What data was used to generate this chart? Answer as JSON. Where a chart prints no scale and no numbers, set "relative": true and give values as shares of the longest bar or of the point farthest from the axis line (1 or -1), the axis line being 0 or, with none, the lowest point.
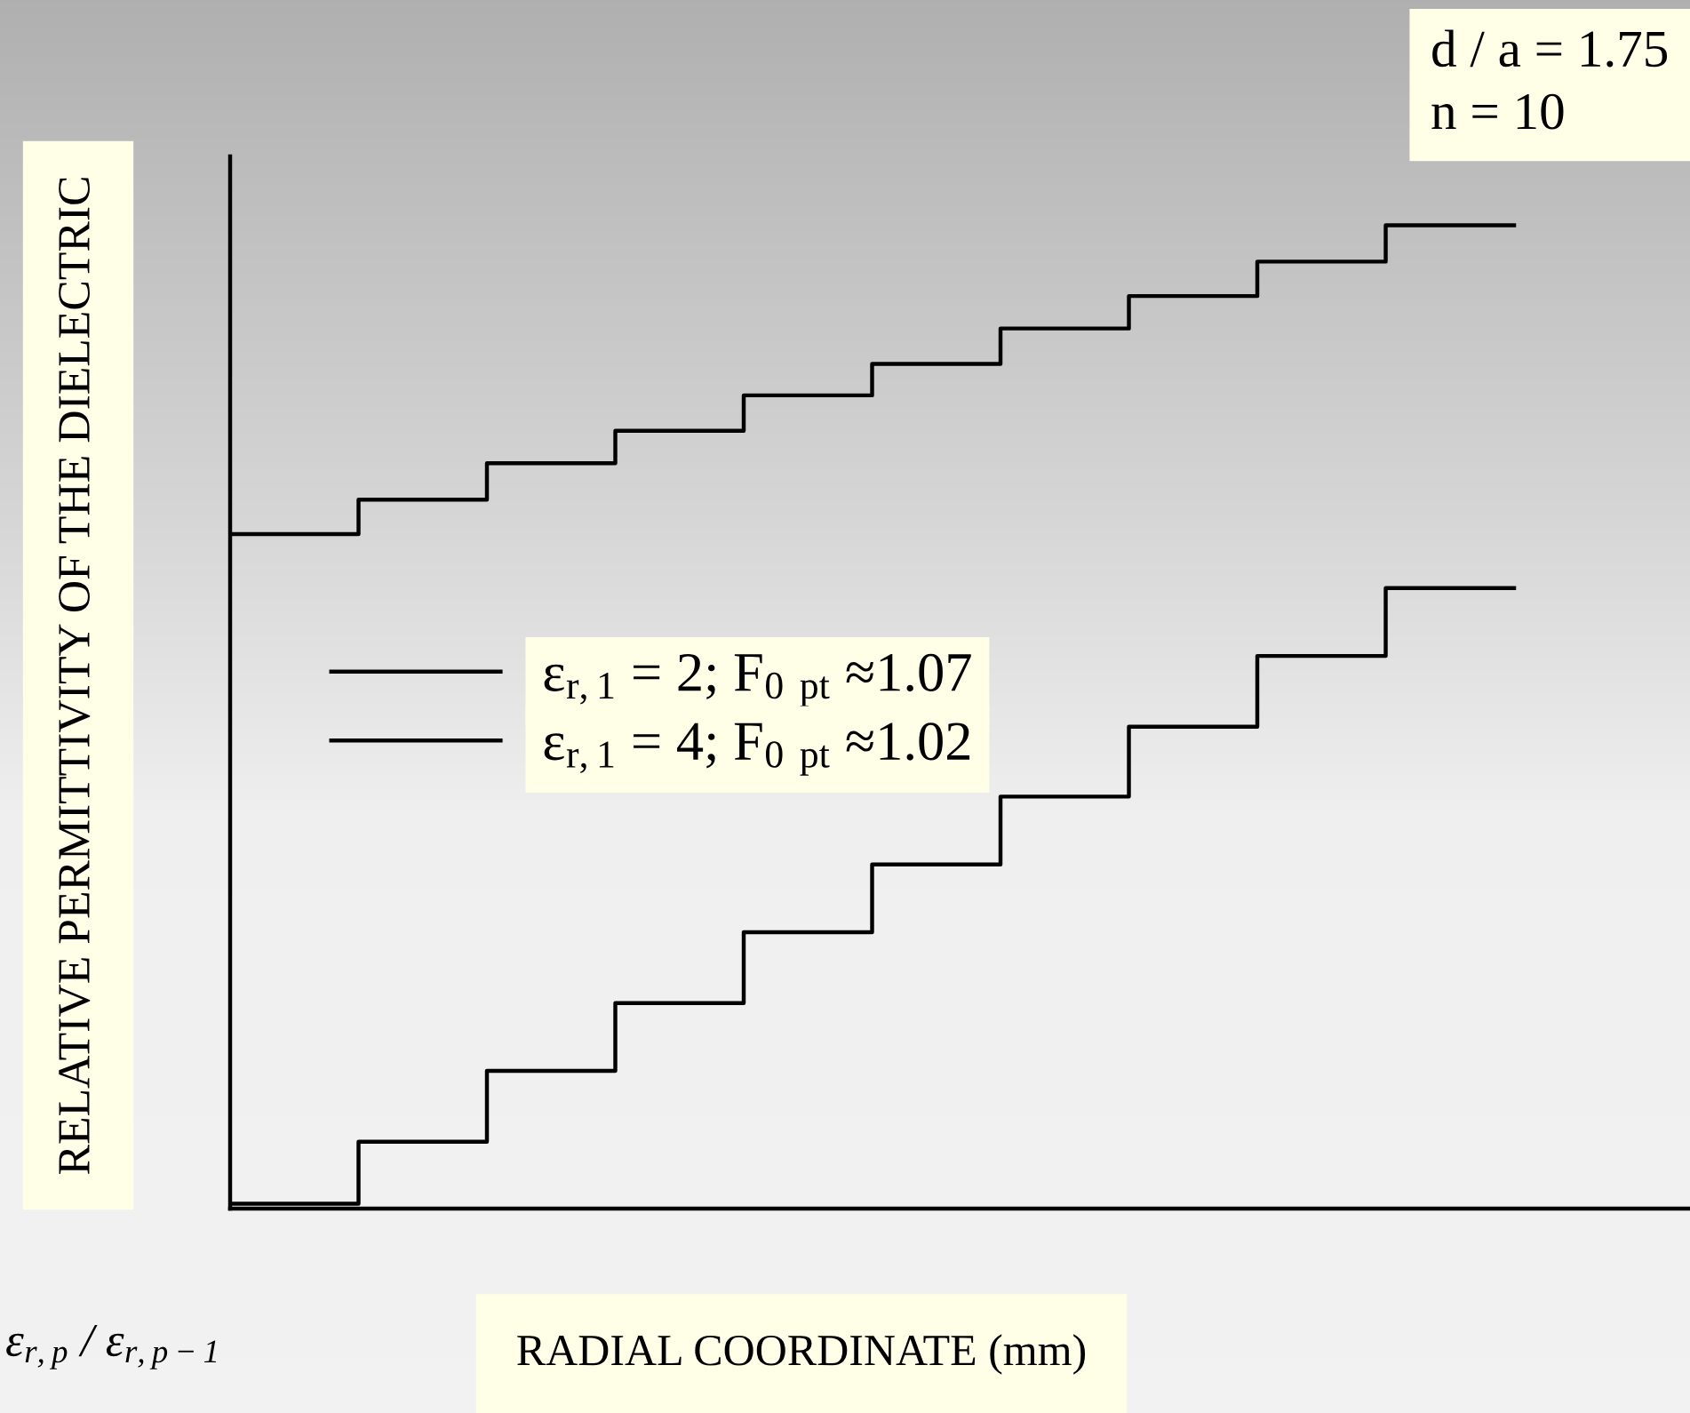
{
  "chart_data": {
    "type": "step",
    "relative": true,
    "xlabel": "RADIAL COORDINATE (mm)",
    "ylabel": "RELATIVE PERMITTIVITY OF THE DIELECTRIC",
    "categories": [
      null,
      null,
      null,
      null,
      null,
      null,
      null,
      null,
      null,
      null,
      null
    ],
    "series": [
      {
        "name": "ε$_{r,1}$ = 2; F$_{0}$ $_{pt}$ ≈1.07",
        "color": "#000000",
        "values": [
          0.686,
          0.721,
          0.758,
          0.791,
          0.827,
          0.859,
          0.895,
          0.928,
          0.963,
          1.0,
          1.0
        ]
      },
      {
        "name": "ε$_{r,1}$ = 4; F$_{0}$ $_{pt}$ ≈1.02",
        "color": "#000000",
        "values": [
          0.005,
          0.068,
          0.14,
          0.209,
          0.281,
          0.35,
          0.419,
          0.49,
          0.562,
          0.631,
          0.631
        ]
      }
    ],
    "legend": "left",
    "annotations": [
      "d / a = 1.75",
      "n = 10",
      "ε$_{r,p}$ / ε$_{r,p−1}$"
    ]
  }
}
